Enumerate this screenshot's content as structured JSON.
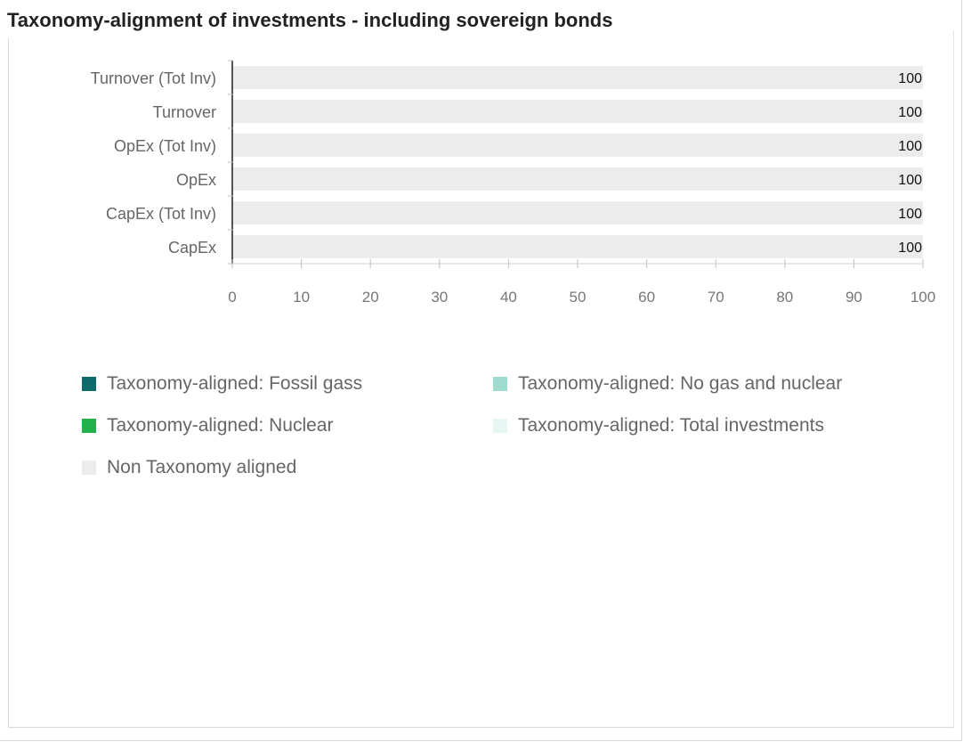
{
  "title": "Taxonomy-alignment of investments - including sovereign bonds",
  "chart_data": {
    "type": "bar",
    "orientation": "horizontal",
    "stacked": true,
    "categories": [
      "Turnover (Tot Inv)",
      "Turnover",
      "OpEx (Tot Inv)",
      "OpEx",
      "CapEx (Tot Inv)",
      "CapEx"
    ],
    "series": [
      {
        "name": "Taxonomy-aligned: Fossil gass",
        "color": "#0e6b6b",
        "values": [
          0,
          0,
          0,
          0,
          0,
          0
        ]
      },
      {
        "name": "Taxonomy-aligned: No gas and nuclear",
        "color": "#9fdccf",
        "values": [
          0,
          0,
          0,
          0,
          0,
          0
        ]
      },
      {
        "name": "Taxonomy-aligned: Nuclear",
        "color": "#22b04b",
        "values": [
          0,
          0,
          0,
          0,
          0,
          0
        ]
      },
      {
        "name": "Taxonomy-aligned: Total investments",
        "color": "#e6f7f4",
        "values": [
          0,
          0,
          0,
          0,
          0,
          0
        ]
      },
      {
        "name": "Non Taxonomy aligned",
        "color": "#ececec",
        "values": [
          100,
          100,
          100,
          100,
          100,
          100
        ]
      }
    ],
    "data_labels": [
      "100",
      "100",
      "100",
      "100",
      "100",
      "100"
    ],
    "xlim": [
      0,
      100
    ],
    "xticks": [
      "0",
      "10",
      "20",
      "30",
      "40",
      "50",
      "60",
      "70",
      "80",
      "90",
      "100"
    ],
    "grid": false,
    "legend_position": "bottom"
  },
  "legend": {
    "items": [
      {
        "label": "Taxonomy-aligned: Fossil gass",
        "color": "#0e6b6b"
      },
      {
        "label": "Taxonomy-aligned: No gas and nuclear",
        "color": "#9fdccf"
      },
      {
        "label": "Taxonomy-aligned: Nuclear",
        "color": "#22b04b"
      },
      {
        "label": "Taxonomy-aligned: Total investments",
        "color": "#e6f7f4"
      },
      {
        "label": "Non Taxonomy aligned",
        "color": "#ececec"
      }
    ]
  }
}
